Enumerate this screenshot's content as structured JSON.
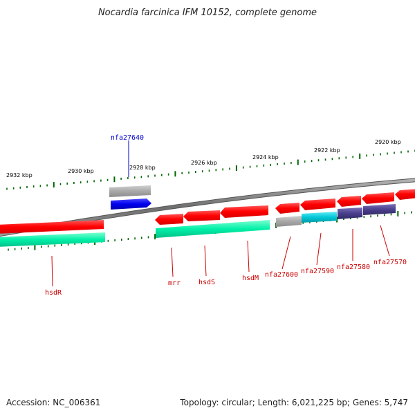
{
  "title": "Nocardia farcinica IFM 10152, complete genome",
  "footer": {
    "accession": "Accession: NC_006361",
    "summary": "Topology: circular; Length: 6,021,225 bp; Genes: 5,747"
  },
  "ticks": [
    "2932 kbp",
    "2930 kbp",
    "2928 kbp",
    "2926 kbp",
    "2924 kbp",
    "2922 kbp",
    "2920 kbp"
  ],
  "genes": [
    {
      "label": "nfa27640",
      "strand": "forward",
      "color": "#0000cc"
    },
    {
      "label": "hsdR",
      "strand": "reverse",
      "color": "#cc0000"
    },
    {
      "label": "mrr",
      "strand": "reverse",
      "color": "#cc0000"
    },
    {
      "label": "hsdS",
      "strand": "reverse",
      "color": "#cc0000"
    },
    {
      "label": "hsdM",
      "strand": "reverse",
      "color": "#cc0000"
    },
    {
      "label": "nfa27600",
      "strand": "reverse",
      "color": "#cc0000"
    },
    {
      "label": "nfa27590",
      "strand": "reverse",
      "color": "#cc0000"
    },
    {
      "label": "nfa27580",
      "strand": "reverse",
      "color": "#cc0000"
    },
    {
      "label": "nfa27570",
      "strand": "reverse",
      "color": "#cc0000"
    }
  ],
  "colors": {
    "backbone": "#808080",
    "cds_forward": "#0000ee",
    "cds_reverse": "#ff0000",
    "tick": "#006600",
    "feature_green": "#00e5a0",
    "feature_gray": "#aaaaaa",
    "feature_cyan": "#00c8d8",
    "feature_purple": "#4a3f8c"
  }
}
